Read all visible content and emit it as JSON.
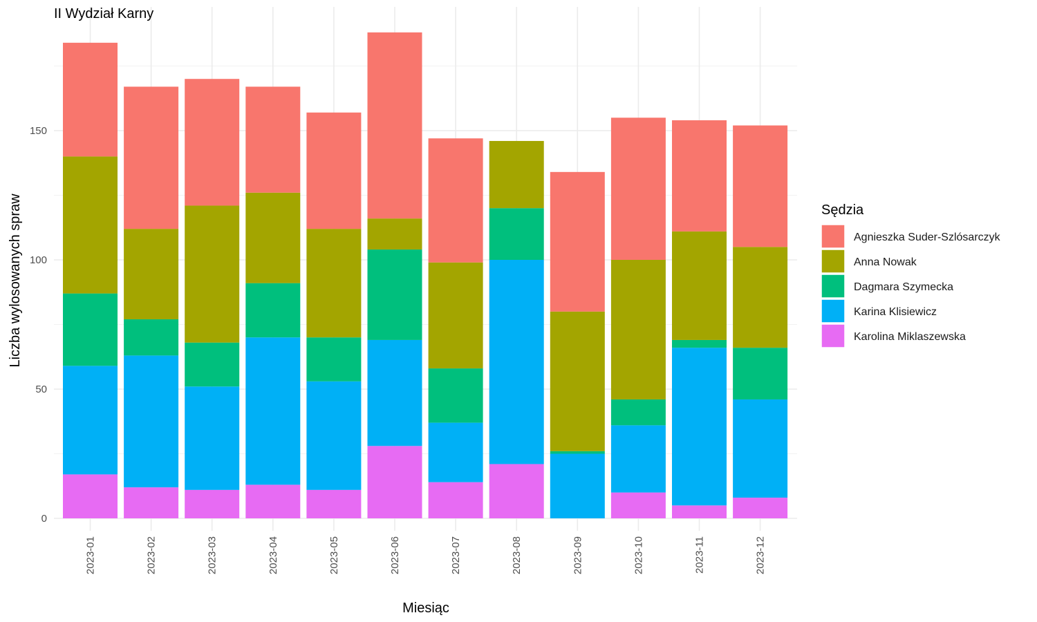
{
  "chart_data": {
    "type": "bar",
    "stacked": true,
    "title": "II Wydział Karny",
    "xlabel": "Miesiąc",
    "ylabel": "Liczba wylosowanych spraw",
    "ylim": [
      0,
      190
    ],
    "yticks": [
      0,
      50,
      100,
      150
    ],
    "grid": true,
    "legend": {
      "title": "Sędzia",
      "position": "right"
    },
    "categories": [
      "2023-01",
      "2023-02",
      "2023-03",
      "2023-04",
      "2023-05",
      "2023-06",
      "2023-07",
      "2023-08",
      "2023-09",
      "2023-10",
      "2023-11",
      "2023-12"
    ],
    "series": [
      {
        "name": "Karolina Miklaszewska",
        "color": "#E76BF3",
        "values": [
          17,
          12,
          11,
          13,
          11,
          28,
          14,
          21,
          0,
          10,
          5,
          8
        ]
      },
      {
        "name": "Karina Klisiewicz",
        "color": "#00B0F6",
        "values": [
          42,
          51,
          40,
          57,
          42,
          41,
          23,
          79,
          25,
          26,
          61,
          38
        ]
      },
      {
        "name": "Dagmara Szymecka",
        "color": "#00BF7D",
        "values": [
          28,
          14,
          17,
          21,
          17,
          35,
          21,
          20,
          1,
          10,
          3,
          20
        ]
      },
      {
        "name": "Anna Nowak",
        "color": "#A3A500",
        "values": [
          53,
          35,
          53,
          35,
          42,
          12,
          41,
          26,
          54,
          54,
          42,
          39
        ]
      },
      {
        "name": "Agnieszka Suder-Szlósarczyk",
        "color": "#F8766D",
        "values": [
          44,
          55,
          49,
          41,
          45,
          72,
          48,
          0,
          54,
          55,
          43,
          47
        ]
      }
    ],
    "legend_order": [
      "Agnieszka Suder-Szlósarczyk",
      "Anna Nowak",
      "Dagmara Szymecka",
      "Karina Klisiewicz",
      "Karolina Miklaszewska"
    ]
  }
}
